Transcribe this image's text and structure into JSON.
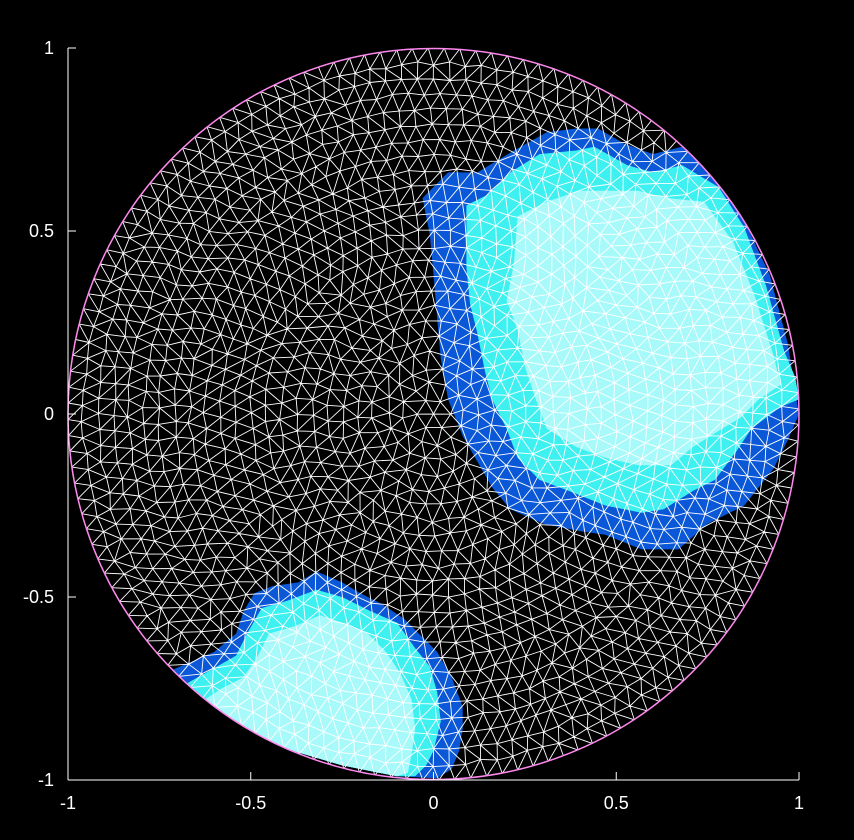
{
  "chart_data": {
    "type": "heatmap",
    "title": "",
    "xlabel": "",
    "ylabel": "",
    "xlim": [
      -1,
      1
    ],
    "ylim": [
      -1,
      1
    ],
    "x_ticks": [
      {
        "value": -1,
        "label": "-1"
      },
      {
        "value": -0.5,
        "label": "-0.5"
      },
      {
        "value": 0,
        "label": "0"
      },
      {
        "value": 0.5,
        "label": "0.5"
      },
      {
        "value": 1,
        "label": "1"
      }
    ],
    "y_ticks": [
      {
        "value": -1,
        "label": "-1"
      },
      {
        "value": -0.5,
        "label": "-0.5"
      },
      {
        "value": 0,
        "label": "0"
      },
      {
        "value": 0.5,
        "label": "0.5"
      },
      {
        "value": 1,
        "label": "1"
      }
    ],
    "domain": {
      "shape": "unit disk",
      "center": [
        0,
        0
      ],
      "radius": 1
    },
    "mesh": {
      "type": "triangular",
      "line_color": "#ffffff",
      "boundary_color": "#ff88ee"
    },
    "levels": [
      {
        "level": 0,
        "color": "#000000"
      },
      {
        "level": 1,
        "color": "#0a58d8"
      },
      {
        "level": 2,
        "color": "#3ff0f0"
      },
      {
        "level": 3,
        "color": "#a8fafa"
      }
    ],
    "regions": [
      {
        "name": "upper-right",
        "bands": [
          {
            "level": 1,
            "polygon": [
              [
                -0.03,
                0.59
              ],
              [
                0.04,
                0.66
              ],
              [
                0.12,
                0.66
              ],
              [
                0.22,
                0.72
              ],
              [
                0.31,
                0.77
              ],
              [
                0.39,
                0.78
              ],
              [
                0.45,
                0.78
              ],
              [
                0.52,
                0.74
              ],
              [
                0.6,
                0.71
              ],
              [
                0.68,
                0.73
              ],
              [
                0.75,
                0.67
              ],
              [
                0.84,
                0.55
              ],
              [
                0.92,
                0.38
              ],
              [
                0.97,
                0.19
              ],
              [
                0.99,
                0.06
              ],
              [
                1.0,
                0.0
              ],
              [
                0.97,
                -0.07
              ],
              [
                0.93,
                -0.15
              ],
              [
                0.85,
                -0.25
              ],
              [
                0.75,
                -0.3
              ],
              [
                0.67,
                -0.37
              ],
              [
                0.57,
                -0.37
              ],
              [
                0.47,
                -0.33
              ],
              [
                0.4,
                -0.32
              ],
              [
                0.3,
                -0.3
              ],
              [
                0.21,
                -0.26
              ],
              [
                0.16,
                -0.2
              ],
              [
                0.12,
                -0.13
              ],
              [
                0.08,
                -0.06
              ],
              [
                0.04,
                0.04
              ],
              [
                0.02,
                0.15
              ],
              [
                0.01,
                0.26
              ],
              [
                0.0,
                0.38
              ],
              [
                -0.01,
                0.49
              ]
            ]
          },
          {
            "level": 2,
            "polygon": [
              [
                0.09,
                0.57
              ],
              [
                0.15,
                0.6
              ],
              [
                0.21,
                0.66
              ],
              [
                0.29,
                0.71
              ],
              [
                0.39,
                0.72
              ],
              [
                0.44,
                0.73
              ],
              [
                0.53,
                0.68
              ],
              [
                0.6,
                0.66
              ],
              [
                0.68,
                0.68
              ],
              [
                0.78,
                0.62
              ],
              [
                0.85,
                0.51
              ],
              [
                0.91,
                0.35
              ],
              [
                0.96,
                0.17
              ],
              [
                0.99,
                0.1
              ],
              [
                1.0,
                0.04
              ],
              [
                0.95,
                0.02
              ],
              [
                0.87,
                -0.04
              ],
              [
                0.83,
                -0.1
              ],
              [
                0.77,
                -0.18
              ],
              [
                0.71,
                -0.21
              ],
              [
                0.63,
                -0.26
              ],
              [
                0.57,
                -0.27
              ],
              [
                0.47,
                -0.25
              ],
              [
                0.37,
                -0.21
              ],
              [
                0.29,
                -0.18
              ],
              [
                0.23,
                -0.12
              ],
              [
                0.2,
                -0.04
              ],
              [
                0.16,
                0.04
              ],
              [
                0.14,
                0.12
              ],
              [
                0.12,
                0.22
              ],
              [
                0.1,
                0.3
              ],
              [
                0.09,
                0.4
              ]
            ]
          },
          {
            "level": 3,
            "polygon": [
              [
                0.23,
                0.54
              ],
              [
                0.31,
                0.58
              ],
              [
                0.4,
                0.61
              ],
              [
                0.48,
                0.61
              ],
              [
                0.56,
                0.61
              ],
              [
                0.64,
                0.59
              ],
              [
                0.74,
                0.58
              ],
              [
                0.82,
                0.47
              ],
              [
                0.88,
                0.32
              ],
              [
                0.93,
                0.16
              ],
              [
                0.95,
                0.08
              ],
              [
                0.89,
                0.04
              ],
              [
                0.84,
                -0.01
              ],
              [
                0.79,
                -0.04
              ],
              [
                0.71,
                -0.09
              ],
              [
                0.65,
                -0.14
              ],
              [
                0.56,
                -0.14
              ],
              [
                0.47,
                -0.12
              ],
              [
                0.39,
                -0.09
              ],
              [
                0.31,
                -0.04
              ],
              [
                0.28,
                0.04
              ],
              [
                0.25,
                0.13
              ],
              [
                0.23,
                0.23
              ],
              [
                0.2,
                0.31
              ],
              [
                0.22,
                0.41
              ]
            ]
          }
        ]
      },
      {
        "name": "lower-left",
        "bands": [
          {
            "level": 1,
            "polygon": [
              [
                -0.74,
                -0.71
              ],
              [
                -0.67,
                -0.68
              ],
              [
                -0.6,
                -0.65
              ],
              [
                -0.54,
                -0.6
              ],
              [
                -0.52,
                -0.54
              ],
              [
                -0.49,
                -0.49
              ],
              [
                -0.44,
                -0.47
              ],
              [
                -0.37,
                -0.46
              ],
              [
                -0.32,
                -0.43
              ],
              [
                -0.25,
                -0.46
              ],
              [
                -0.2,
                -0.49
              ],
              [
                -0.14,
                -0.52
              ],
              [
                -0.08,
                -0.56
              ],
              [
                -0.03,
                -0.61
              ],
              [
                0.01,
                -0.65
              ],
              [
                0.05,
                -0.72
              ],
              [
                0.08,
                -0.8
              ],
              [
                0.08,
                -0.86
              ],
              [
                0.07,
                -0.92
              ],
              [
                0.05,
                -0.97
              ],
              [
                0.01,
                -0.995
              ],
              [
                -0.1,
                -0.99
              ],
              [
                -0.25,
                -0.96
              ],
              [
                -0.42,
                -0.91
              ],
              [
                -0.55,
                -0.84
              ],
              [
                -0.65,
                -0.77
              ]
            ]
          },
          {
            "level": 2,
            "polygon": [
              [
                -0.7,
                -0.75
              ],
              [
                -0.61,
                -0.7
              ],
              [
                -0.54,
                -0.66
              ],
              [
                -0.51,
                -0.6
              ],
              [
                -0.47,
                -0.53
              ],
              [
                -0.4,
                -0.51
              ],
              [
                -0.32,
                -0.48
              ],
              [
                -0.25,
                -0.5
              ],
              [
                -0.17,
                -0.54
              ],
              [
                -0.1,
                -0.57
              ],
              [
                -0.05,
                -0.64
              ],
              [
                -0.01,
                -0.69
              ],
              [
                0.01,
                -0.76
              ],
              [
                0.02,
                -0.84
              ],
              [
                0.0,
                -0.92
              ],
              [
                -0.02,
                -0.96
              ],
              [
                -0.05,
                -0.99
              ],
              [
                -0.1,
                -0.99
              ],
              [
                -0.25,
                -0.96
              ],
              [
                -0.42,
                -0.91
              ],
              [
                -0.55,
                -0.84
              ],
              [
                -0.65,
                -0.78
              ]
            ]
          },
          {
            "level": 3,
            "polygon": [
              [
                -0.64,
                -0.79
              ],
              [
                -0.58,
                -0.75
              ],
              [
                -0.52,
                -0.72
              ],
              [
                -0.48,
                -0.66
              ],
              [
                -0.45,
                -0.6
              ],
              [
                -0.38,
                -0.58
              ],
              [
                -0.31,
                -0.55
              ],
              [
                -0.25,
                -0.57
              ],
              [
                -0.18,
                -0.6
              ],
              [
                -0.13,
                -0.65
              ],
              [
                -0.09,
                -0.71
              ],
              [
                -0.06,
                -0.78
              ],
              [
                -0.05,
                -0.86
              ],
              [
                -0.06,
                -0.93
              ],
              [
                -0.07,
                -0.98
              ],
              [
                -0.1,
                -0.99
              ],
              [
                -0.25,
                -0.96
              ],
              [
                -0.42,
                -0.91
              ],
              [
                -0.55,
                -0.84
              ]
            ]
          }
        ]
      }
    ]
  }
}
